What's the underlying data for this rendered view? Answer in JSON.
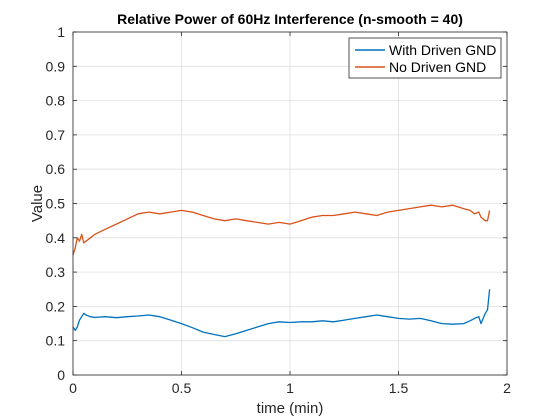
{
  "chart_data": {
    "type": "line",
    "title": "Relative Power of 60Hz Interference (n-smooth = 40)",
    "xlabel": "time (min)",
    "ylabel": "Value",
    "xlim": [
      0,
      2
    ],
    "ylim": [
      0,
      1
    ],
    "xticks": [
      0,
      0.5,
      1,
      1.5,
      2
    ],
    "xtick_labels": [
      "0",
      "0.5",
      "1",
      "1.5",
      "2"
    ],
    "yticks": [
      0,
      0.1,
      0.2,
      0.3,
      0.4,
      0.5,
      0.6,
      0.7,
      0.8,
      0.9,
      1
    ],
    "ytick_labels": [
      "0",
      "0.1",
      "0.2",
      "0.3",
      "0.4",
      "0.5",
      "0.6",
      "0.7",
      "0.8",
      "0.9",
      "1"
    ],
    "grid": true,
    "legend_position": "top-right",
    "series": [
      {
        "name": "With Driven GND",
        "color": "#0072BD",
        "x": [
          0.0,
          0.01,
          0.02,
          0.03,
          0.04,
          0.05,
          0.06,
          0.08,
          0.1,
          0.15,
          0.2,
          0.25,
          0.3,
          0.35,
          0.4,
          0.45,
          0.5,
          0.55,
          0.6,
          0.65,
          0.7,
          0.75,
          0.8,
          0.85,
          0.9,
          0.95,
          1.0,
          1.05,
          1.1,
          1.15,
          1.2,
          1.25,
          1.3,
          1.35,
          1.4,
          1.45,
          1.5,
          1.55,
          1.6,
          1.65,
          1.7,
          1.75,
          1.8,
          1.83,
          1.85,
          1.87,
          1.88,
          1.9,
          1.91,
          1.92
        ],
        "y": [
          0.14,
          0.13,
          0.14,
          0.16,
          0.17,
          0.18,
          0.175,
          0.17,
          0.168,
          0.17,
          0.167,
          0.17,
          0.172,
          0.175,
          0.17,
          0.16,
          0.15,
          0.138,
          0.125,
          0.118,
          0.112,
          0.12,
          0.13,
          0.14,
          0.15,
          0.155,
          0.153,
          0.155,
          0.155,
          0.158,
          0.155,
          0.16,
          0.165,
          0.17,
          0.175,
          0.17,
          0.165,
          0.163,
          0.165,
          0.158,
          0.15,
          0.148,
          0.15,
          0.158,
          0.165,
          0.17,
          0.15,
          0.18,
          0.19,
          0.25
        ]
      },
      {
        "name": "No Driven GND",
        "color": "#D95319",
        "x": [
          0.0,
          0.01,
          0.02,
          0.03,
          0.04,
          0.05,
          0.06,
          0.08,
          0.1,
          0.15,
          0.2,
          0.25,
          0.3,
          0.35,
          0.4,
          0.45,
          0.5,
          0.55,
          0.6,
          0.65,
          0.7,
          0.75,
          0.8,
          0.85,
          0.9,
          0.95,
          1.0,
          1.05,
          1.1,
          1.15,
          1.2,
          1.25,
          1.3,
          1.35,
          1.4,
          1.45,
          1.5,
          1.55,
          1.6,
          1.65,
          1.7,
          1.75,
          1.8,
          1.83,
          1.85,
          1.87,
          1.88,
          1.9,
          1.91,
          1.92
        ],
        "y": [
          0.35,
          0.37,
          0.4,
          0.39,
          0.41,
          0.385,
          0.39,
          0.4,
          0.41,
          0.425,
          0.44,
          0.455,
          0.47,
          0.475,
          0.47,
          0.475,
          0.48,
          0.475,
          0.465,
          0.455,
          0.45,
          0.455,
          0.45,
          0.445,
          0.44,
          0.445,
          0.44,
          0.45,
          0.46,
          0.465,
          0.465,
          0.47,
          0.475,
          0.47,
          0.465,
          0.475,
          0.48,
          0.485,
          0.49,
          0.495,
          0.49,
          0.495,
          0.485,
          0.48,
          0.47,
          0.475,
          0.46,
          0.45,
          0.45,
          0.48
        ]
      }
    ]
  }
}
